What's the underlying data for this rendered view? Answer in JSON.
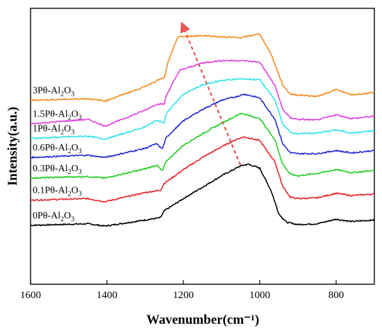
{
  "chart_data": {
    "type": "line",
    "xlabel": "Wavenumber(cm⁻¹)",
    "ylabel": "Intensity(a.u.)",
    "xlim": [
      1600,
      700
    ],
    "x_axis_reversed": true,
    "x_ticks": [
      1600,
      1400,
      1200,
      1000,
      800
    ],
    "y_ticks_shown": false,
    "grid": false,
    "legend": "inline labels above each curve (left side)",
    "annotation": "dashed red arrow from ~1060 cm⁻¹ (lower curves) toward ~1200 cm⁻¹ (top curve)",
    "series": [
      {
        "name": "0Pθ-Al2O3",
        "color": "#000000",
        "offset": 0,
        "keypoints": [
          [
            1600,
            0.0
          ],
          [
            1450,
            0.2
          ],
          [
            1405,
            -0.1
          ],
          [
            1300,
            0.7
          ],
          [
            1260,
            1.0
          ],
          [
            1250,
            1.9
          ],
          [
            1200,
            3.5
          ],
          [
            1150,
            5.0
          ],
          [
            1100,
            6.5
          ],
          [
            1050,
            7.8
          ],
          [
            1030,
            8.0
          ],
          [
            1000,
            7.5
          ],
          [
            970,
            4.5
          ],
          [
            950,
            1.5
          ],
          [
            930,
            0.4
          ],
          [
            900,
            0.1
          ],
          [
            850,
            0.2
          ],
          [
            800,
            0.8
          ],
          [
            760,
            0.5
          ],
          [
            700,
            0.7
          ]
        ]
      },
      {
        "name": "0.1Pθ-Al2O3",
        "color": "#e8252a",
        "offset": 3.3,
        "keypoints": [
          [
            1600,
            0.0
          ],
          [
            1450,
            0.2
          ],
          [
            1405,
            -0.2
          ],
          [
            1300,
            1.0
          ],
          [
            1260,
            1.3
          ],
          [
            1250,
            2.2
          ],
          [
            1200,
            4.0
          ],
          [
            1150,
            5.6
          ],
          [
            1100,
            7.0
          ],
          [
            1060,
            8.0
          ],
          [
            1040,
            8.3
          ],
          [
            1000,
            7.8
          ],
          [
            960,
            5.0
          ],
          [
            940,
            1.8
          ],
          [
            920,
            0.4
          ],
          [
            900,
            0.2
          ],
          [
            850,
            0.3
          ],
          [
            800,
            0.9
          ],
          [
            760,
            0.6
          ],
          [
            700,
            0.8
          ]
        ]
      },
      {
        "name": "0.3Pθ-Al2O3",
        "color": "#22ce22",
        "offset": 6.2,
        "keypoints": [
          [
            1600,
            0.0
          ],
          [
            1450,
            0.2
          ],
          [
            1405,
            0.0
          ],
          [
            1300,
            1.2
          ],
          [
            1270,
            1.7
          ],
          [
            1255,
            0.9
          ],
          [
            1245,
            2.2
          ],
          [
            1200,
            4.3
          ],
          [
            1150,
            5.8
          ],
          [
            1100,
            7.2
          ],
          [
            1060,
            8.2
          ],
          [
            1050,
            8.5
          ],
          [
            1000,
            7.8
          ],
          [
            960,
            5.0
          ],
          [
            940,
            1.8
          ],
          [
            920,
            0.5
          ],
          [
            900,
            0.3
          ],
          [
            850,
            0.6
          ],
          [
            800,
            1.1
          ],
          [
            760,
            0.7
          ],
          [
            700,
            1.0
          ]
        ]
      },
      {
        "name": "0.6Pθ-Al2O3",
        "color": "#1f2bd0",
        "offset": 8.9,
        "keypoints": [
          [
            1600,
            0.0
          ],
          [
            1450,
            0.3
          ],
          [
            1405,
            0.0
          ],
          [
            1300,
            1.2
          ],
          [
            1270,
            1.8
          ],
          [
            1255,
            1.1
          ],
          [
            1245,
            2.6
          ],
          [
            1200,
            4.8
          ],
          [
            1150,
            6.3
          ],
          [
            1100,
            7.5
          ],
          [
            1060,
            8.0
          ],
          [
            1040,
            8.3
          ],
          [
            1000,
            7.8
          ],
          [
            960,
            5.0
          ],
          [
            940,
            1.8
          ],
          [
            920,
            0.6
          ],
          [
            900,
            0.5
          ],
          [
            850,
            0.5
          ],
          [
            800,
            0.9
          ],
          [
            760,
            0.6
          ],
          [
            700,
            0.9
          ]
        ]
      },
      {
        "name": "1Pθ-Al2O3",
        "color": "#2fe3ea",
        "offset": 11.4,
        "keypoints": [
          [
            1600,
            0.0
          ],
          [
            1450,
            0.3
          ],
          [
            1405,
            -0.1
          ],
          [
            1300,
            1.5
          ],
          [
            1270,
            2.4
          ],
          [
            1250,
            2.0
          ],
          [
            1245,
            3.3
          ],
          [
            1200,
            5.8
          ],
          [
            1150,
            7.0
          ],
          [
            1100,
            7.6
          ],
          [
            1050,
            7.8
          ],
          [
            1000,
            7.7
          ],
          [
            960,
            5.0
          ],
          [
            940,
            1.9
          ],
          [
            920,
            0.8
          ],
          [
            900,
            0.6
          ],
          [
            850,
            0.7
          ],
          [
            800,
            1.1
          ],
          [
            760,
            0.7
          ],
          [
            700,
            1.0
          ]
        ]
      },
      {
        "name": "1.5Pθ-Al2O3",
        "color": "#e13ee1",
        "offset": 13.3,
        "keypoints": [
          [
            1600,
            0.0
          ],
          [
            1450,
            0.6
          ],
          [
            1405,
            -0.3
          ],
          [
            1300,
            1.8
          ],
          [
            1270,
            2.6
          ],
          [
            1250,
            2.6
          ],
          [
            1245,
            3.7
          ],
          [
            1210,
            7.0
          ],
          [
            1150,
            8.0
          ],
          [
            1100,
            8.3
          ],
          [
            1050,
            8.3
          ],
          [
            1000,
            8.1
          ],
          [
            960,
            5.0
          ],
          [
            940,
            1.9
          ],
          [
            920,
            0.8
          ],
          [
            900,
            0.6
          ],
          [
            850,
            0.5
          ],
          [
            800,
            1.2
          ],
          [
            760,
            0.7
          ],
          [
            700,
            1.0
          ]
        ]
      },
      {
        "name": "3Pθ-Al2O3",
        "color": "#f58a1f",
        "offset": 16.4,
        "keypoints": [
          [
            1600,
            0.0
          ],
          [
            1450,
            0.2
          ],
          [
            1405,
            -0.1
          ],
          [
            1300,
            1.8
          ],
          [
            1265,
            2.7
          ],
          [
            1250,
            2.9
          ],
          [
            1240,
            5.0
          ],
          [
            1215,
            8.3
          ],
          [
            1150,
            8.5
          ],
          [
            1100,
            8.3
          ],
          [
            1050,
            8.2
          ],
          [
            1000,
            8.7
          ],
          [
            970,
            6.0
          ],
          [
            940,
            2.0
          ],
          [
            920,
            0.8
          ],
          [
            900,
            0.7
          ],
          [
            850,
            0.5
          ],
          [
            800,
            1.4
          ],
          [
            760,
            0.7
          ],
          [
            700,
            1.0
          ]
        ]
      }
    ]
  }
}
